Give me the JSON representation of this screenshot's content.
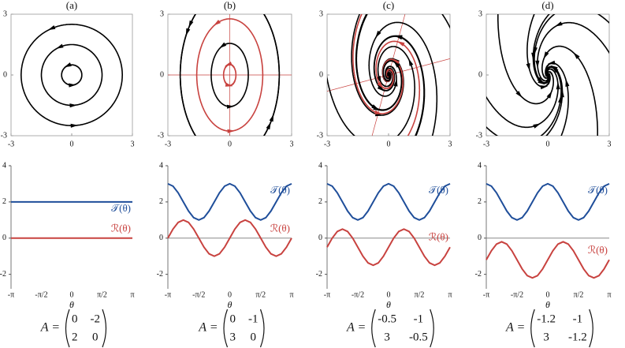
{
  "chart_data": [
    {
      "type": "phase",
      "title": "(a)",
      "matrix_label": "A =",
      "matrix": [
        [
          0,
          -2
        ],
        [
          2,
          0
        ]
      ],
      "xlim": [
        -3,
        3
      ],
      "ylim": [
        -3,
        3
      ],
      "xticks": [
        -3,
        0,
        3
      ],
      "yticks": [
        -3,
        0,
        3
      ]
    },
    {
      "type": "phase",
      "title": "(b)",
      "matrix_label": "A =",
      "matrix": [
        [
          0,
          -1
        ],
        [
          3,
          0
        ]
      ],
      "xlim": [
        -3,
        3
      ],
      "ylim": [
        -3,
        3
      ],
      "xticks": [
        -3,
        0,
        3
      ],
      "yticks": [
        -3,
        0,
        3
      ]
    },
    {
      "type": "phase",
      "title": "(c)",
      "matrix_label": "A =",
      "matrix": [
        [
          -0.5,
          -1
        ],
        [
          3,
          -0.5
        ]
      ],
      "xlim": [
        -3,
        3
      ],
      "ylim": [
        -3,
        3
      ],
      "xticks": [
        -3,
        0,
        3
      ],
      "yticks": [
        -3,
        0,
        3
      ]
    },
    {
      "type": "phase",
      "title": "(d)",
      "matrix_label": "A =",
      "matrix": [
        [
          -1.2,
          -1
        ],
        [
          3,
          -1.2
        ]
      ],
      "xlim": [
        -3,
        3
      ],
      "ylim": [
        -3,
        3
      ],
      "xticks": [
        -3,
        0,
        3
      ],
      "yticks": [
        -3,
        0,
        3
      ]
    },
    {
      "type": "line",
      "x_label": "θ",
      "axhline": 0,
      "x": [
        -3.1416,
        -2.8798,
        -2.618,
        -2.3562,
        -2.0944,
        -1.8326,
        -1.5708,
        -1.309,
        -1.0472,
        -0.7854,
        -0.5236,
        -0.2618,
        0,
        0.2618,
        0.5236,
        0.7854,
        1.0472,
        1.309,
        1.5708,
        1.8326,
        2.0944,
        2.3562,
        2.618,
        2.8798,
        3.1416
      ],
      "xlim": [
        -3.1416,
        3.1416
      ],
      "xticks": [
        {
          "value": -3.1416,
          "label": "-π"
        },
        {
          "value": -1.5708,
          "label": "-π/2"
        },
        0,
        {
          "value": 1.5708,
          "label": "π/2"
        },
        {
          "value": 3.1416,
          "label": "π"
        }
      ],
      "ylim": [
        -2.8,
        4
      ],
      "yticks": [
        -2,
        0,
        2,
        4
      ],
      "series": [
        {
          "name": "𝒯(θ)",
          "color": "#1f4e9a",
          "values": [
            2,
            2,
            2,
            2,
            2,
            2,
            2,
            2,
            2,
            2,
            2,
            2,
            2,
            2,
            2,
            2,
            2,
            2,
            2,
            2,
            2,
            2,
            2,
            2,
            2
          ]
        },
        {
          "name": "ℛ(θ)",
          "color": "#c8423f",
          "values": [
            0,
            0,
            0,
            0,
            0,
            0,
            0,
            0,
            0,
            0,
            0,
            0,
            0,
            0,
            0,
            0,
            0,
            0,
            0,
            0,
            0,
            0,
            0,
            0,
            0
          ]
        }
      ]
    },
    {
      "type": "line",
      "x_label": "θ",
      "axhline": 0,
      "x": [
        -3.1416,
        -2.8798,
        -2.618,
        -2.3562,
        -2.0944,
        -1.8326,
        -1.5708,
        -1.309,
        -1.0472,
        -0.7854,
        -0.5236,
        -0.2618,
        0,
        0.2618,
        0.5236,
        0.7854,
        1.0472,
        1.309,
        1.5708,
        1.8326,
        2.0944,
        2.3562,
        2.618,
        2.8798,
        3.1416
      ],
      "xlim": [
        -3.1416,
        3.1416
      ],
      "xticks": [
        {
          "value": -3.1416,
          "label": "-π"
        },
        {
          "value": -1.5708,
          "label": "-π/2"
        },
        0,
        {
          "value": 1.5708,
          "label": "π/2"
        },
        {
          "value": 3.1416,
          "label": "π"
        }
      ],
      "ylim": [
        -2.8,
        4
      ],
      "yticks": [
        -2,
        0,
        2,
        4
      ],
      "series": [
        {
          "name": "𝒯(θ)",
          "color": "#1f4e9a",
          "values": [
            3,
            2.87,
            2.5,
            2,
            1.5,
            1.13,
            1,
            1.13,
            1.5,
            2,
            2.5,
            2.87,
            3,
            2.87,
            2.5,
            2,
            1.5,
            1.13,
            1,
            1.13,
            1.5,
            2,
            2.5,
            2.87,
            3
          ]
        },
        {
          "name": "ℛ(θ)",
          "color": "#c8423f",
          "values": [
            0,
            0.5,
            0.87,
            1,
            0.87,
            0.5,
            0,
            -0.5,
            -0.87,
            -1,
            -0.87,
            -0.5,
            0,
            0.5,
            0.87,
            1,
            0.87,
            0.5,
            0,
            -0.5,
            -0.87,
            -1,
            -0.87,
            -0.5,
            0
          ]
        }
      ]
    },
    {
      "type": "line",
      "x_label": "θ",
      "axhline": 0,
      "x": [
        -3.1416,
        -2.8798,
        -2.618,
        -2.3562,
        -2.0944,
        -1.8326,
        -1.5708,
        -1.309,
        -1.0472,
        -0.7854,
        -0.5236,
        -0.2618,
        0,
        0.2618,
        0.5236,
        0.7854,
        1.0472,
        1.309,
        1.5708,
        1.8326,
        2.0944,
        2.3562,
        2.618,
        2.8798,
        3.1416
      ],
      "xlim": [
        -3.1416,
        3.1416
      ],
      "xticks": [
        {
          "value": -3.1416,
          "label": "-π"
        },
        {
          "value": -1.5708,
          "label": "-π/2"
        },
        0,
        {
          "value": 1.5708,
          "label": "π/2"
        },
        {
          "value": 3.1416,
          "label": "π"
        }
      ],
      "ylim": [
        -2.8,
        4
      ],
      "yticks": [
        -2,
        0,
        2,
        4
      ],
      "series": [
        {
          "name": "𝒯(θ)",
          "color": "#1f4e9a",
          "values": [
            3,
            2.87,
            2.5,
            2,
            1.5,
            1.13,
            1,
            1.13,
            1.5,
            2,
            2.5,
            2.87,
            3,
            2.87,
            2.5,
            2,
            1.5,
            1.13,
            1,
            1.13,
            1.5,
            2,
            2.5,
            2.87,
            3
          ]
        },
        {
          "name": "ℛ(θ)",
          "color": "#c8423f",
          "values": [
            -0.5,
            0,
            0.37,
            0.5,
            0.37,
            0,
            -0.5,
            -1,
            -1.37,
            -1.5,
            -1.37,
            -1,
            -0.5,
            0,
            0.37,
            0.5,
            0.37,
            0,
            -0.5,
            -1,
            -1.37,
            -1.5,
            -1.37,
            -1,
            -0.5
          ]
        }
      ]
    },
    {
      "type": "line",
      "x_label": "θ",
      "axhline": 0,
      "x": [
        -3.1416,
        -2.8798,
        -2.618,
        -2.3562,
        -2.0944,
        -1.8326,
        -1.5708,
        -1.309,
        -1.0472,
        -0.7854,
        -0.5236,
        -0.2618,
        0,
        0.2618,
        0.5236,
        0.7854,
        1.0472,
        1.309,
        1.5708,
        1.8326,
        2.0944,
        2.3562,
        2.618,
        2.8798,
        3.1416
      ],
      "xlim": [
        -3.1416,
        3.1416
      ],
      "xticks": [
        {
          "value": -3.1416,
          "label": "-π"
        },
        {
          "value": -1.5708,
          "label": "-π/2"
        },
        0,
        {
          "value": 1.5708,
          "label": "π/2"
        },
        {
          "value": 3.1416,
          "label": "π"
        }
      ],
      "ylim": [
        -2.8,
        4
      ],
      "yticks": [
        -2,
        0,
        2,
        4
      ],
      "series": [
        {
          "name": "𝒯(θ)",
          "color": "#1f4e9a",
          "values": [
            3,
            2.87,
            2.5,
            2,
            1.5,
            1.13,
            1,
            1.13,
            1.5,
            2,
            2.5,
            2.87,
            3,
            2.87,
            2.5,
            2,
            1.5,
            1.13,
            1,
            1.13,
            1.5,
            2,
            2.5,
            2.87,
            3
          ]
        },
        {
          "name": "ℛ(θ)",
          "color": "#c8423f",
          "values": [
            -1.2,
            -0.7,
            -0.33,
            -0.2,
            -0.33,
            -0.7,
            -1.2,
            -1.7,
            -2.07,
            -2.2,
            -2.07,
            -1.7,
            -1.2,
            -0.7,
            -0.33,
            -0.2,
            -0.33,
            -0.7,
            -1.2,
            -1.7,
            -2.07,
            -2.2,
            -2.07,
            -1.7,
            -1.2
          ]
        }
      ]
    }
  ]
}
